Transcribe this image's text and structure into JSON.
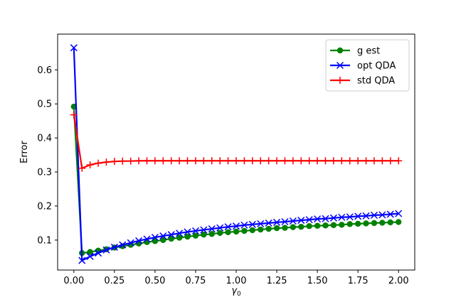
{
  "chart_data": {
    "type": "line",
    "xlabel": "γ",
    "xlabel_subscript": "0",
    "ylabel": "Error",
    "xlim": [
      -0.1,
      2.1
    ],
    "ylim": [
      0.012,
      0.705
    ],
    "xticks": [
      "0.00",
      "0.25",
      "0.50",
      "0.75",
      "1.00",
      "1.25",
      "1.50",
      "1.75",
      "2.00"
    ],
    "yticks": [
      "0.1",
      "0.2",
      "0.3",
      "0.4",
      "0.5",
      "0.6"
    ],
    "grid": false,
    "legend_position": "top-right",
    "x": [
      0,
      0.05,
      0.1,
      0.15,
      0.2,
      0.25,
      0.3,
      0.35,
      0.4,
      0.45,
      0.5,
      0.55,
      0.6,
      0.65,
      0.7,
      0.75,
      0.8,
      0.85,
      0.9,
      0.95,
      1.0,
      1.05,
      1.1,
      1.15,
      1.2,
      1.25,
      1.3,
      1.35,
      1.4,
      1.45,
      1.5,
      1.55,
      1.6,
      1.65,
      1.7,
      1.75,
      1.8,
      1.85,
      1.9,
      1.95,
      2.0
    ],
    "series": [
      {
        "name": "g est",
        "color": "#008000",
        "marker": "circle",
        "values": [
          0.492,
          0.062,
          0.065,
          0.069,
          0.073,
          0.078,
          0.082,
          0.086,
          0.09,
          0.094,
          0.097,
          0.1,
          0.104,
          0.107,
          0.11,
          0.113,
          0.116,
          0.118,
          0.121,
          0.123,
          0.125,
          0.127,
          0.129,
          0.131,
          0.133,
          0.135,
          0.136,
          0.138,
          0.139,
          0.141,
          0.142,
          0.143,
          0.144,
          0.145,
          0.147,
          0.148,
          0.149,
          0.15,
          0.151,
          0.152,
          0.153
        ]
      },
      {
        "name": "opt QDA",
        "color": "#0000ff",
        "marker": "x",
        "values": [
          0.665,
          0.04,
          0.052,
          0.062,
          0.071,
          0.079,
          0.086,
          0.092,
          0.098,
          0.103,
          0.108,
          0.112,
          0.116,
          0.12,
          0.124,
          0.127,
          0.13,
          0.133,
          0.136,
          0.139,
          0.141,
          0.144,
          0.146,
          0.148,
          0.15,
          0.152,
          0.154,
          0.156,
          0.158,
          0.16,
          0.162,
          0.163,
          0.165,
          0.167,
          0.168,
          0.17,
          0.171,
          0.173,
          0.174,
          0.176,
          0.178
        ]
      },
      {
        "name": "std QDA",
        "color": "#ff0000",
        "marker": "plus",
        "values": [
          0.468,
          0.311,
          0.321,
          0.326,
          0.329,
          0.331,
          0.332,
          0.332,
          0.333,
          0.333,
          0.333,
          0.333,
          0.333,
          0.333,
          0.333,
          0.333,
          0.333,
          0.333,
          0.333,
          0.333,
          0.333,
          0.333,
          0.333,
          0.333,
          0.333,
          0.333,
          0.333,
          0.333,
          0.333,
          0.333,
          0.333,
          0.333,
          0.333,
          0.333,
          0.333,
          0.333,
          0.333,
          0.333,
          0.333,
          0.333,
          0.333
        ]
      }
    ]
  }
}
